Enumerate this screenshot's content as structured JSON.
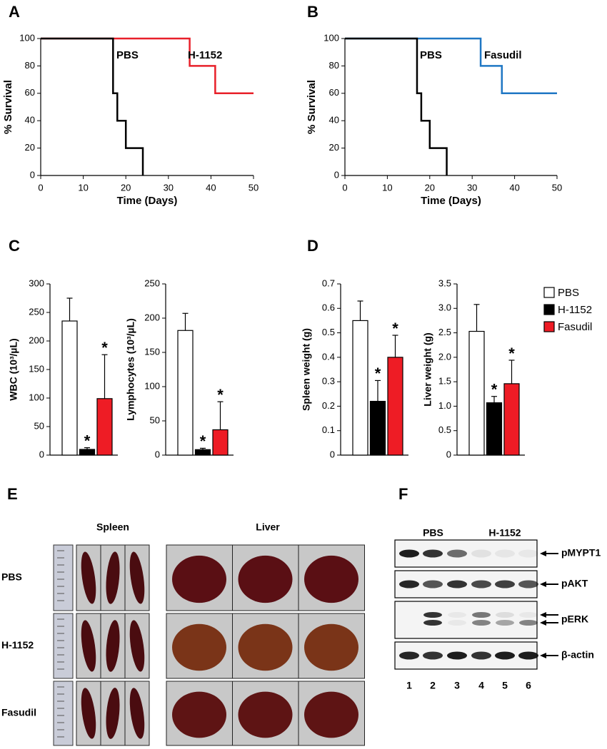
{
  "panel_labels": [
    "A",
    "B",
    "C",
    "D",
    "E",
    "F"
  ],
  "chart_data": [
    {
      "type": "line",
      "step": true,
      "xlabel": "Time (Days)",
      "ylabel": "% Survival",
      "xlim": [
        0,
        50
      ],
      "ylim": [
        0,
        100
      ],
      "xticks": [
        0,
        10,
        20,
        30,
        40,
        50
      ],
      "yticks": [
        0,
        20,
        40,
        60,
        80,
        100
      ],
      "series": [
        {
          "name": "PBS",
          "color": "#000000",
          "x": [
            0,
            17,
            18,
            20,
            24
          ],
          "values": [
            100,
            60,
            40,
            20,
            0
          ]
        },
        {
          "name": "H-1152",
          "color": "#e8202a",
          "x": [
            0,
            35,
            41,
            50
          ],
          "values": [
            100,
            80,
            60,
            60
          ]
        }
      ]
    },
    {
      "type": "line",
      "step": true,
      "xlabel": "Time (Days)",
      "ylabel": "% Survival",
      "xlim": [
        0,
        50
      ],
      "ylim": [
        0,
        100
      ],
      "xticks": [
        0,
        10,
        20,
        30,
        40,
        50
      ],
      "yticks": [
        0,
        20,
        40,
        60,
        80,
        100
      ],
      "series": [
        {
          "name": "PBS",
          "color": "#000000",
          "x": [
            0,
            17,
            18,
            20,
            24
          ],
          "values": [
            100,
            60,
            40,
            20,
            0
          ]
        },
        {
          "name": "Fasudil",
          "color": "#1f77c4",
          "x": [
            0,
            32,
            37,
            50
          ],
          "values": [
            100,
            80,
            60,
            60
          ]
        }
      ]
    },
    {
      "type": "bar",
      "ylabel": "WBC (10³/µL)",
      "categories": [
        "PBS",
        "H-1152",
        "Fasudil"
      ],
      "colors": [
        "#ffffff",
        "#000000",
        "#ee1c25"
      ],
      "values": [
        235,
        10,
        99
      ],
      "errors": [
        40,
        3,
        77
      ],
      "significance": [
        null,
        "*",
        "*"
      ],
      "ylim": [
        0,
        300
      ],
      "yticks": [
        0,
        50,
        100,
        150,
        200,
        250,
        300
      ]
    },
    {
      "type": "bar",
      "ylabel": "Lymphocytes (10³/µL)",
      "categories": [
        "PBS",
        "H-1152",
        "Fasudil"
      ],
      "colors": [
        "#ffffff",
        "#000000",
        "#ee1c25"
      ],
      "values": [
        182,
        8,
        37
      ],
      "errors": [
        25,
        2,
        41
      ],
      "significance": [
        null,
        "*",
        "*"
      ],
      "ylim": [
        0,
        250
      ],
      "yticks": [
        0,
        50,
        100,
        150,
        200,
        250
      ]
    },
    {
      "type": "bar",
      "ylabel": "Spleen weight (g)",
      "categories": [
        "PBS",
        "H-1152",
        "Fasudil"
      ],
      "colors": [
        "#ffffff",
        "#000000",
        "#ee1c25"
      ],
      "values": [
        0.55,
        0.22,
        0.4
      ],
      "errors": [
        0.08,
        0.085,
        0.09
      ],
      "significance": [
        null,
        "*",
        "*"
      ],
      "ylim": [
        0,
        0.7
      ],
      "yticks": [
        0,
        0.1,
        0.2,
        0.3,
        0.4,
        0.5,
        0.6,
        0.7
      ]
    },
    {
      "type": "bar",
      "ylabel": "Liver weight (g)",
      "categories": [
        "PBS",
        "H-1152",
        "Fasudil"
      ],
      "colors": [
        "#ffffff",
        "#000000",
        "#ee1c25"
      ],
      "values": [
        2.53,
        1.07,
        1.46
      ],
      "errors": [
        0.55,
        0.13,
        0.48
      ],
      "significance": [
        null,
        "*",
        "*"
      ],
      "ylim": [
        0,
        3.5
      ],
      "legend": "right",
      "yticks": [
        0,
        0.5,
        {
          "value": 1,
          "label": "1.0"
        },
        1.5,
        {
          "value": 2,
          "label": "2.0"
        },
        2.5,
        {
          "value": 3,
          "label": "3.0"
        },
        3.5
      ]
    }
  ],
  "photos": {
    "columns": [
      "Spleen",
      "Liver"
    ],
    "rows": [
      "PBS",
      "H-1152",
      "Fasudil"
    ]
  },
  "blot": {
    "groups": [
      "PBS",
      "H-1152"
    ],
    "proteins": [
      "pMYPT1",
      "pAKT",
      "pERK",
      "β-actin"
    ],
    "lanes": [
      "1",
      "2",
      "3",
      "4",
      "5",
      "6"
    ]
  }
}
